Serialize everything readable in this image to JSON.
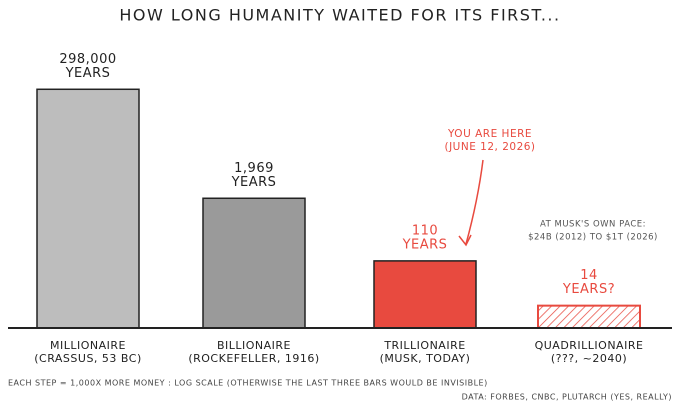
{
  "chart_data": {
    "type": "bar",
    "title": "HOW LONG HUMANITY WAITED FOR ITS FIRST...",
    "categories": [
      "MILLIONAIRE",
      "BILLIONAIRE",
      "TRILLIONAIRE",
      "QUADRILLIONAIRE"
    ],
    "category_notes": [
      "(CRASSUS, 53 BC)",
      "(ROCKEFELLER, 1916)",
      "(MUSK, TODAY)",
      "(???, ~2040)"
    ],
    "values": [
      298000,
      1969,
      110,
      14
    ],
    "value_labels": [
      "298,000",
      "1,969",
      "110",
      "14"
    ],
    "value_suffixes": [
      "YEARS",
      "YEARS",
      "YEARS",
      "YEARS?"
    ],
    "colors": [
      "#bdbdbd",
      "#9a9a9a",
      "#e84a3f",
      "#e84a3f"
    ],
    "hatched": [
      false,
      false,
      false,
      true
    ],
    "label_colors": [
      "#222222",
      "#222222",
      "#e84a3f",
      "#e84a3f"
    ],
    "log_scale": true,
    "ylim": [
      5,
      1000000
    ],
    "annotations": [
      {
        "lines": [
          "YOU ARE HERE",
          "(JUNE 12, 2026)"
        ],
        "color": "#e84a3f"
      },
      {
        "lines": [
          "AT MUSK'S OWN PACE:",
          "$24B (2012) TO $1T (2026)"
        ],
        "color": "#555555"
      }
    ],
    "notes": [
      "EACH STEP = 1,000X MORE MONEY  :  LOG SCALE (OTHERWISE THE LAST THREE BARS WOULD BE INVISIBLE)",
      "DATA: FORBES, CNBC, PLUTARCH (YES, REALLY)"
    ]
  }
}
